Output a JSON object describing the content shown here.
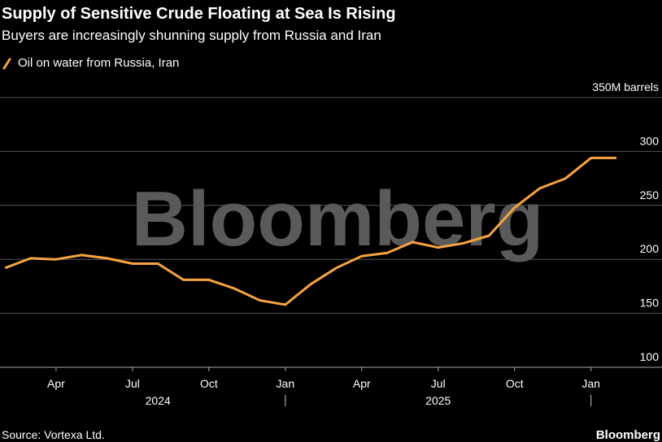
{
  "chart_data": {
    "type": "line",
    "title": "Supply of Sensitive Crude Floating at Sea Is Rising",
    "subtitle": "Buyers are increasingly shunning supply from Russia and Iran",
    "watermark": "Bloomberg",
    "source": "Source: Vortexa Ltd.",
    "brand": "Bloomberg",
    "x": [
      "2024-02",
      "2024-03",
      "2024-04",
      "2024-05",
      "2024-06",
      "2024-07",
      "2024-08",
      "2024-09",
      "2024-10",
      "2024-11",
      "2024-12",
      "2025-01",
      "2025-02",
      "2025-03",
      "2025-04",
      "2025-05",
      "2025-06",
      "2025-07",
      "2025-08",
      "2025-09",
      "2025-10",
      "2025-11",
      "2025-12",
      "2026-01",
      "2026-02"
    ],
    "series": [
      {
        "name": "Oil on water from Russia, Iran",
        "color": "#f7a440",
        "values": [
          192,
          201,
          200,
          204,
          201,
          196,
          196,
          181,
          181,
          173,
          162,
          158,
          177,
          192,
          203,
          206,
          216,
          211,
          215,
          222,
          248,
          266,
          275,
          294,
          294
        ]
      }
    ],
    "xlim": [
      "2024-02",
      "2026-02"
    ],
    "xticks": [
      {
        "value": "2024-04",
        "label": "Apr"
      },
      {
        "value": "2024-07",
        "label": "Jul"
      },
      {
        "value": "2024-10",
        "label": "Oct"
      },
      {
        "value": "2025-01",
        "label": "Jan"
      },
      {
        "value": "2025-04",
        "label": "Apr"
      },
      {
        "value": "2025-07",
        "label": "Jul"
      },
      {
        "value": "2025-10",
        "label": "Oct"
      },
      {
        "value": "2026-01",
        "label": "Jan"
      }
    ],
    "year_labels": [
      {
        "value": "2024-08",
        "label": "2024"
      },
      {
        "value": "2025-07",
        "label": "2025"
      }
    ],
    "year_boundaries": [
      "2025-01",
      "2026-01"
    ],
    "ylim": [
      100,
      350
    ],
    "yticks": [
      100,
      150,
      200,
      250,
      300,
      {
        "value": 350,
        "label": "350M barrels"
      }
    ],
    "grid": true
  }
}
